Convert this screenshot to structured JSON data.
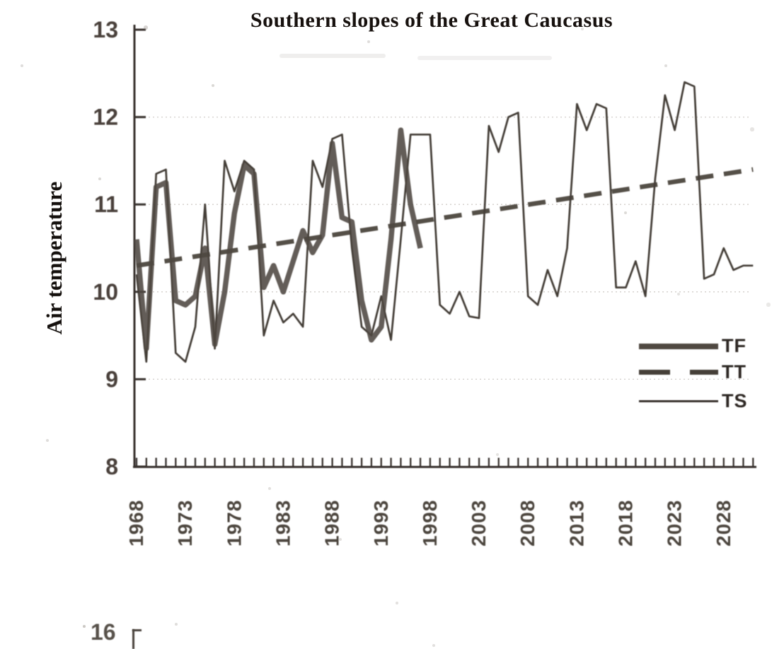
{
  "page": {
    "background_color": "#ffffff",
    "ink_color": "#39332d"
  },
  "chart_data": {
    "type": "line",
    "title": "Southern slopes of the Great Caucasus",
    "ylabel": "Air temperature",
    "xlabel": "",
    "ylim": [
      8,
      13
    ],
    "xlim": [
      1968,
      2031
    ],
    "y_ticks": [
      13,
      12,
      11,
      10,
      9,
      8
    ],
    "grid_y": [
      9,
      10,
      11,
      12
    ],
    "grid_style": "faint dotted horizontal lines at integer temperatures",
    "x_tick_labels": [
      "1968",
      "1973",
      "1978",
      "1983",
      "1988",
      "1993",
      "1998",
      "2003",
      "2008",
      "2013",
      "2018",
      "2023",
      "2028"
    ],
    "x_minor_ticks": {
      "start": 1968,
      "end": 2031,
      "step": 1
    },
    "legend_position": "middle-right",
    "series": [
      {
        "name": "TF",
        "style": "thick-solid",
        "color": "#4f4841",
        "x_start": 1968,
        "values": [
          10.6,
          9.35,
          11.2,
          11.25,
          9.9,
          9.85,
          9.95,
          10.5,
          9.4,
          10.0,
          10.9,
          11.45,
          11.35,
          10.05,
          10.3,
          10.0,
          10.35,
          10.7,
          10.45,
          10.65,
          11.7,
          10.85,
          10.8,
          9.9,
          9.45,
          9.6,
          10.6,
          11.85,
          11.0,
          10.5
        ]
      },
      {
        "name": "TT",
        "style": "thick-dashed",
        "color": "#453f38",
        "trend_x": [
          1968,
          2031
        ],
        "trend_y": [
          10.3,
          11.4
        ]
      },
      {
        "name": "TS",
        "style": "thin-solid",
        "color": "#38322d",
        "x_start": 1968,
        "values": [
          10.2,
          9.2,
          11.35,
          11.4,
          9.3,
          9.2,
          9.6,
          11.0,
          9.35,
          11.5,
          11.15,
          11.5,
          11.4,
          9.5,
          9.9,
          9.65,
          9.75,
          9.6,
          11.5,
          11.2,
          11.75,
          11.8,
          10.5,
          9.6,
          9.5,
          9.95,
          9.45,
          10.6,
          11.8,
          11.8,
          11.8,
          9.85,
          9.75,
          10.0,
          9.72,
          9.7,
          11.9,
          11.6,
          12.0,
          12.05,
          9.95,
          9.85,
          10.25,
          9.95,
          10.5,
          12.15,
          11.85,
          12.15,
          12.1,
          10.05,
          10.05,
          10.35,
          9.95,
          11.3,
          12.25,
          11.85,
          12.4,
          12.35,
          10.15,
          10.2,
          10.5,
          10.25,
          10.3,
          10.3
        ]
      }
    ]
  },
  "footer": {
    "next_chart_tick_label": "16"
  }
}
